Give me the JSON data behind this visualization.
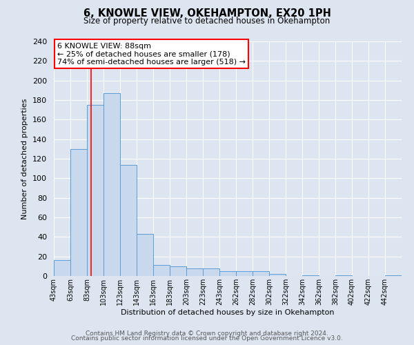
{
  "title": "6, KNOWLE VIEW, OKEHAMPTON, EX20 1PH",
  "subtitle": "Size of property relative to detached houses in Okehampton",
  "xlabel": "Distribution of detached houses by size in Okehampton",
  "ylabel": "Number of detached properties",
  "bar_labels": [
    "43sqm",
    "63sqm",
    "83sqm",
    "103sqm",
    "123sqm",
    "143sqm",
    "163sqm",
    "183sqm",
    "203sqm",
    "223sqm",
    "243sqm",
    "262sqm",
    "282sqm",
    "302sqm",
    "322sqm",
    "342sqm",
    "362sqm",
    "382sqm",
    "402sqm",
    "422sqm",
    "442sqm"
  ],
  "bar_values": [
    16,
    130,
    175,
    187,
    114,
    43,
    11,
    10,
    8,
    8,
    5,
    5,
    5,
    2,
    0,
    1,
    0,
    1,
    0,
    0,
    1
  ],
  "bar_color": "#c9d9ed",
  "bar_edge_color": "#5b9bd5",
  "vline_color": "red",
  "annotation_title": "6 KNOWLE VIEW: 88sqm",
  "annotation_line1": "← 25% of detached houses are smaller (178)",
  "annotation_line2": "74% of semi-detached houses are larger (518) →",
  "annotation_box_edge_color": "red",
  "ylim": [
    0,
    240
  ],
  "yticks": [
    0,
    20,
    40,
    60,
    80,
    100,
    120,
    140,
    160,
    180,
    200,
    220,
    240
  ],
  "footer_line1": "Contains HM Land Registry data © Crown copyright and database right 2024.",
  "footer_line2": "Contains public sector information licensed under the Open Government Licence v3.0.",
  "background_color": "#dde6f0",
  "plot_bg_color": "#dde6f0"
}
